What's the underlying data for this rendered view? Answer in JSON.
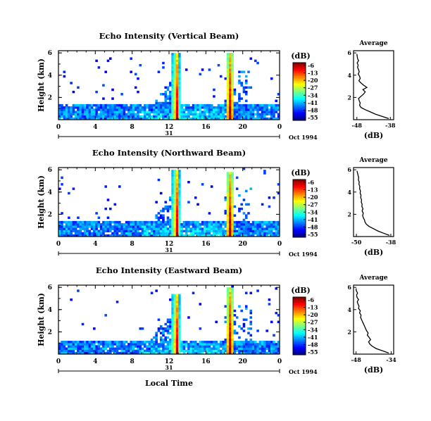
{
  "chart_data": [
    {
      "type": "heatmap",
      "title": "Echo Intensity (Vertical Beam)",
      "ylabel": "Height (km)",
      "y_ticks": [
        "2",
        "4",
        "6"
      ],
      "x_ticks": [
        "0",
        "4",
        "8",
        "12",
        "16",
        "20",
        "0"
      ],
      "day_label": "31",
      "date_label": "Oct 1994",
      "xlim": [
        0,
        24
      ],
      "ylim": [
        0,
        6.2
      ],
      "colorbar": {
        "label": "(dB)",
        "ticks": [
          "-6",
          "-13",
          "-20",
          "-27",
          "-34",
          "-41",
          "-48",
          "-55"
        ],
        "range": [
          -55,
          -6
        ]
      },
      "echo_layers": [
        {
          "x_start": 0,
          "x_end": 24,
          "top_km": 1.5,
          "level_db": -44
        },
        {
          "x_start": 9,
          "x_end": 12.8,
          "top_km": 4.2,
          "level_db": -45
        }
      ],
      "rain_events": [
        {
          "time_h": 12.8,
          "top_km": 6,
          "peak_db": -8
        },
        {
          "time_h": 18.6,
          "top_km": 6,
          "peak_db": -6
        }
      ],
      "average_profile": {
        "title": "Average",
        "xlabel": "(dB)",
        "x_ticks": [
          "-48",
          "-38"
        ],
        "xlim": [
          -49,
          -37
        ],
        "y_ticks": [
          "2",
          "4",
          "6"
        ],
        "height_km": [
          0.1,
          0.3,
          0.5,
          0.7,
          0.9,
          1.1,
          1.3,
          1.5,
          1.7,
          1.9,
          2.1,
          2.3,
          2.5,
          2.7,
          2.9,
          3.1,
          3.3,
          3.5,
          3.7,
          3.9,
          4.1,
          4.3,
          4.5,
          4.7,
          4.9,
          5.1,
          5.3,
          5.5,
          5.7,
          5.9
        ],
        "db": [
          -38.5,
          -40.5,
          -42.5,
          -44,
          -45.5,
          -46.8,
          -47.2,
          -47.0,
          -47.3,
          -47.5,
          -46.8,
          -46.0,
          -45.5,
          -46.2,
          -45.0,
          -46.0,
          -46.8,
          -47.4,
          -47.0,
          -47.2,
          -47.6,
          -47.3,
          -47.5,
          -47.8,
          -47.6,
          -47.9,
          -47.5,
          -47.8,
          -47.9,
          -48.0
        ]
      }
    },
    {
      "type": "heatmap",
      "title": "Echo Intensity (Northward Beam)",
      "ylabel": "Height (km)",
      "y_ticks": [
        "2",
        "4",
        "6"
      ],
      "x_ticks": [
        "0",
        "4",
        "8",
        "12",
        "16",
        "20",
        "0"
      ],
      "day_label": "31",
      "date_label": "Oct 1994",
      "xlim": [
        0,
        24
      ],
      "ylim": [
        0,
        6.2
      ],
      "colorbar": {
        "label": "(dB)",
        "ticks": [
          "-6",
          "-13",
          "-20",
          "-27",
          "-34",
          "-41",
          "-48",
          "-55"
        ],
        "range": [
          -55,
          -6
        ]
      },
      "echo_layers": [
        {
          "x_start": 0,
          "x_end": 24,
          "top_km": 1.5,
          "level_db": -44
        },
        {
          "x_start": 9,
          "x_end": 12.8,
          "top_km": 4.5,
          "level_db": -45
        }
      ],
      "rain_events": [
        {
          "time_h": 12.8,
          "top_km": 6,
          "peak_db": -8
        },
        {
          "time_h": 18.6,
          "top_km": 5.8,
          "peak_db": -6
        }
      ],
      "average_profile": {
        "title": "Average",
        "xlabel": "(dB)",
        "x_ticks": [
          "-50",
          "-38"
        ],
        "xlim": [
          -51,
          -37
        ],
        "y_ticks": [
          "2",
          "4",
          "6"
        ],
        "height_km": [
          0.1,
          0.3,
          0.5,
          0.7,
          0.9,
          1.1,
          1.3,
          1.5,
          1.7,
          1.9,
          2.1,
          2.3,
          2.5,
          2.7,
          2.9,
          3.1,
          3.3,
          3.5,
          3.7,
          3.9,
          4.1,
          4.3,
          4.5,
          4.7,
          4.9,
          5.1,
          5.3,
          5.5,
          5.7,
          5.9
        ],
        "db": [
          -38.5,
          -40.5,
          -42.5,
          -44,
          -45.5,
          -46.5,
          -47.0,
          -47.2,
          -47.6,
          -47.8,
          -47.6,
          -48.0,
          -47.7,
          -48.1,
          -48.0,
          -48.3,
          -48.2,
          -48.5,
          -48.4,
          -48.7,
          -48.6,
          -48.9,
          -48.8,
          -49.1,
          -49.0,
          -49.3,
          -49.2,
          -49.4,
          -49.6,
          -49.8
        ]
      }
    },
    {
      "type": "heatmap",
      "title": "Echo Intensity (Eastward Beam)",
      "ylabel": "Height (km)",
      "y_ticks": [
        "2",
        "4",
        "6"
      ],
      "x_ticks": [
        "0",
        "4",
        "8",
        "12",
        "16",
        "20",
        "0"
      ],
      "day_label": "31",
      "date_label": "Oct 1994",
      "xlim": [
        0,
        24
      ],
      "ylim": [
        0,
        6.2
      ],
      "colorbar": {
        "label": "(dB)",
        "ticks": [
          "-6",
          "-13",
          "-20",
          "-27",
          "-34",
          "-41",
          "-48",
          "-55"
        ],
        "range": [
          -55,
          -6
        ]
      },
      "echo_layers": [
        {
          "x_start": 0,
          "x_end": 24,
          "top_km": 1.2,
          "level_db": -44
        },
        {
          "x_start": 9,
          "x_end": 12.8,
          "top_km": 4.5,
          "level_db": -45
        }
      ],
      "rain_events": [
        {
          "time_h": 12.8,
          "top_km": 5.5,
          "peak_db": -8
        },
        {
          "time_h": 18.6,
          "top_km": 6,
          "peak_db": -6
        }
      ],
      "average_profile": {
        "title": "Average",
        "xlabel": "(dB)",
        "x_ticks": [
          "-48",
          "-34"
        ],
        "xlim": [
          -49,
          -33
        ],
        "y_ticks": [
          "2",
          "4",
          "6"
        ],
        "height_km": [
          0.1,
          0.3,
          0.5,
          0.7,
          0.9,
          1.1,
          1.3,
          1.5,
          1.7,
          1.9,
          2.1,
          2.3,
          2.5,
          2.7,
          2.9,
          3.1,
          3.3,
          3.5,
          3.7,
          3.9,
          4.1,
          4.3,
          4.5,
          4.7,
          4.9,
          5.1,
          5.3,
          5.5,
          5.7,
          5.9
        ],
        "db": [
          -35.0,
          -37.5,
          -40.0,
          -41.5,
          -42.5,
          -43.0,
          -42.2,
          -42.8,
          -43.5,
          -43.2,
          -43.8,
          -44.2,
          -44.6,
          -45.0,
          -45.4,
          -45.8,
          -46.2,
          -46.0,
          -46.6,
          -46.3,
          -47.0,
          -46.8,
          -47.2,
          -47.5,
          -47.0,
          -47.6,
          -47.8,
          -47.4,
          -47.9,
          -48.0
        ]
      }
    }
  ],
  "shared": {
    "xlabel": "Local Time"
  }
}
